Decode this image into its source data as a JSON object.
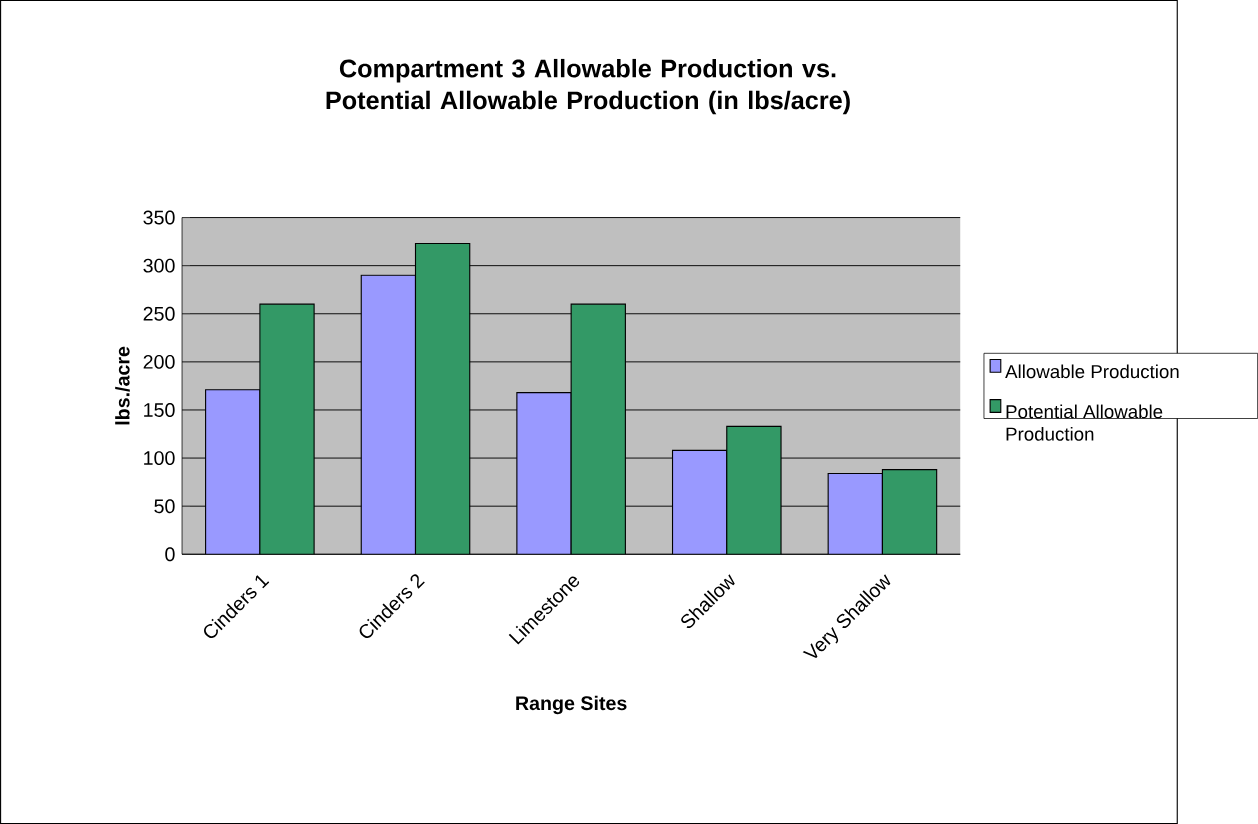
{
  "chart_data": {
    "type": "bar",
    "title": "Compartment 3 Allowable Production vs. Potential Allowable Production (in lbs/acre)",
    "xlabel": "Range Sites",
    "ylabel": "lbs./acre",
    "categories": [
      "Cinders 1",
      "Cinders 2",
      "Limestone",
      "Shallow",
      "Very Shallow"
    ],
    "series": [
      {
        "name": "Allowable Production",
        "color": "#9999ff",
        "values": [
          171,
          290,
          168,
          108,
          84
        ]
      },
      {
        "name": "Potential Allowable Production",
        "color": "#339966",
        "values": [
          260,
          323,
          260,
          133,
          88
        ]
      }
    ],
    "ylim": [
      0,
      350
    ],
    "yticks": [
      0,
      50,
      100,
      150,
      200,
      250,
      300,
      350
    ],
    "grid": "y",
    "legend": "right"
  }
}
